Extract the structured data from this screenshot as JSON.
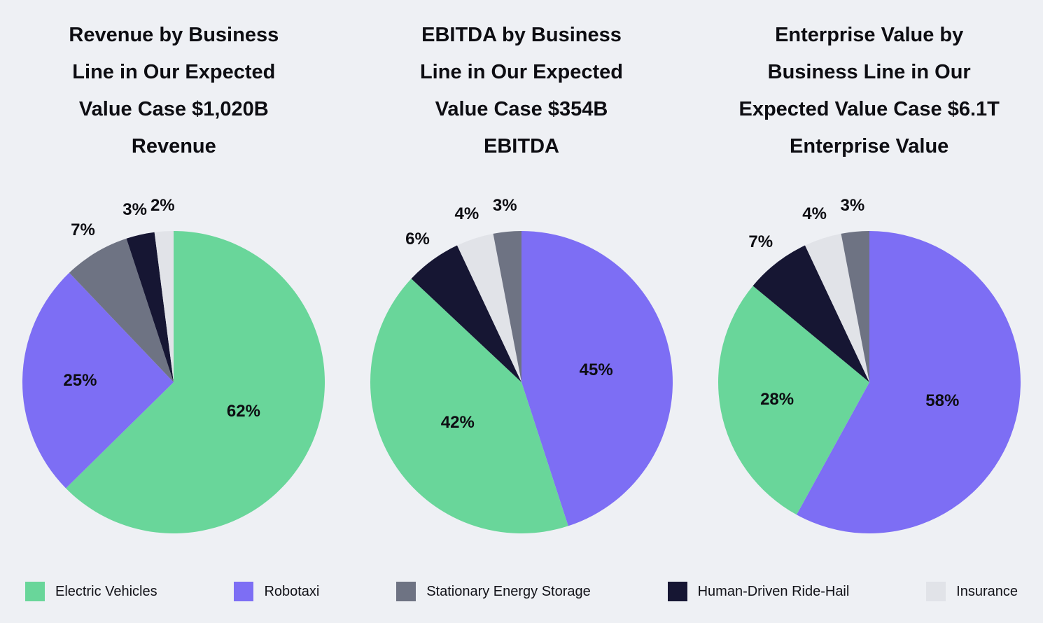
{
  "page": {
    "background_color": "#eef0f4",
    "text_color": "#0d0d12"
  },
  "colors": {
    "Electric Vehicles": "#69d69a",
    "Robotaxi": "#7d6ef4",
    "Stationary Energy Storage": "#6e7383",
    "Human-Driven Ride-Hail": "#161633",
    "Insurance": "#e1e3e8"
  },
  "legend": {
    "position": "bottom",
    "items": [
      {
        "label": "Electric Vehicles"
      },
      {
        "label": "Robotaxi"
      },
      {
        "label": "Stationary Energy Storage"
      },
      {
        "label": "Human-Driven Ride-Hail"
      },
      {
        "label": "Insurance"
      }
    ]
  },
  "chart_data": [
    {
      "type": "pie",
      "title": "Revenue by Business Line in Our Expected Value Case $1,020B Revenue",
      "total_label": "$1,020B Revenue",
      "start_angle": "12-oclock",
      "direction": "clockwise",
      "grid": false,
      "slices": [
        {
          "label": "Electric Vehicles",
          "value": 62,
          "display": "62%"
        },
        {
          "label": "Robotaxi",
          "value": 25,
          "display": "25%"
        },
        {
          "label": "Stationary Energy Storage",
          "value": 7,
          "display": "7%"
        },
        {
          "label": "Human-Driven Ride-Hail",
          "value": 3,
          "display": "3%"
        },
        {
          "label": "Insurance",
          "value": 2,
          "display": "2%"
        }
      ]
    },
    {
      "type": "pie",
      "title": "EBITDA by Business Line in Our Expected Value Case $354B EBITDA",
      "total_label": "$354B EBITDA",
      "start_angle": "12-oclock",
      "direction": "clockwise",
      "grid": false,
      "slices": [
        {
          "label": "Robotaxi",
          "value": 45,
          "display": "45%"
        },
        {
          "label": "Electric Vehicles",
          "value": 42,
          "display": "42%"
        },
        {
          "label": "Human-Driven Ride-Hail",
          "value": 6,
          "display": "6%"
        },
        {
          "label": "Insurance",
          "value": 4,
          "display": "4%"
        },
        {
          "label": "Stationary Energy Storage",
          "value": 3,
          "display": "3%"
        }
      ]
    },
    {
      "type": "pie",
      "title": "Enterprise Value by Business Line in Our Expected Value Case $6.1T Enterprise Value",
      "total_label": "$6.1T Enterprise Value",
      "start_angle": "12-oclock",
      "direction": "clockwise",
      "grid": false,
      "slices": [
        {
          "label": "Robotaxi",
          "value": 58,
          "display": "58%"
        },
        {
          "label": "Electric Vehicles",
          "value": 28,
          "display": "28%"
        },
        {
          "label": "Human-Driven Ride-Hail",
          "value": 7,
          "display": "7%"
        },
        {
          "label": "Insurance",
          "value": 4,
          "display": "4%"
        },
        {
          "label": "Stationary Energy Storage",
          "value": 3,
          "display": "3%"
        }
      ]
    }
  ]
}
